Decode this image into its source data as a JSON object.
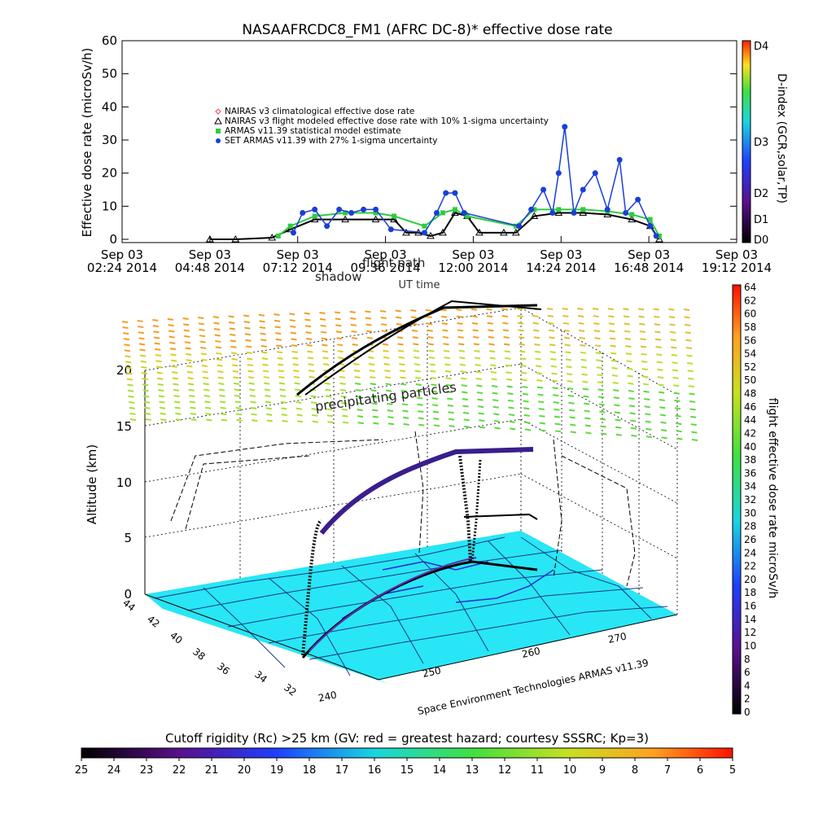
{
  "top_chart": {
    "title": "NASAAFRCDC8_FM1 (AFRC DC-8)* effective dose rate",
    "ylabel": "Effective dose rate (microSv/h)",
    "xlabel": "UT time",
    "yticks": [
      "0",
      "10",
      "20",
      "30",
      "40",
      "50",
      "60"
    ],
    "xticks": [
      {
        "l1": "Sep 03",
        "l2": "02:24 2014"
      },
      {
        "l1": "Sep 03",
        "l2": "04:48 2014"
      },
      {
        "l1": "Sep 03",
        "l2": "07:12 2014"
      },
      {
        "l1": "Sep 03",
        "l2": "09:36 2014"
      },
      {
        "l1": "Sep 03",
        "l2": "12:00 2014"
      },
      {
        "l1": "Sep 03",
        "l2": "14:24 2014"
      },
      {
        "l1": "Sep 03",
        "l2": "16:48 2014"
      },
      {
        "l1": "Sep 03",
        "l2": "19:12 2014"
      }
    ],
    "legend": [
      {
        "text": "NAIRAS v3 climatological effective dose rate",
        "color": "#e24a4a",
        "marker": "diamond"
      },
      {
        "text": "NAIRAS v3 flight modeled effective dose rate with 10% 1-sigma uncertainty",
        "color": "#000000",
        "marker": "triangle"
      },
      {
        "text": "ARMAS v11.39 statistical model estimate",
        "color": "#2ecc40",
        "marker": "star"
      },
      {
        "text": "SET ARMAS v11.39 with 27% 1-sigma uncertainty",
        "color": "#1a3fd6",
        "marker": "circle"
      }
    ],
    "dindex": {
      "title": "D-index (GCR,solar,TP)",
      "ticks": [
        "D0",
        "D1",
        "D2",
        "D3",
        "D4"
      ]
    }
  },
  "bottom_chart": {
    "ylabel": "Altitude (km)",
    "zticks": [
      "0",
      "5",
      "10",
      "15",
      "20"
    ],
    "lat_ticks": [
      "44",
      "42",
      "40",
      "38",
      "36",
      "34",
      "32"
    ],
    "lon_ticks": [
      "240",
      "250",
      "260",
      "270"
    ],
    "credit": "Space Environment Technologies ARMAS v11.39",
    "annotation_particles": "precipitating particles",
    "annotation_shadow": "shadow",
    "annotation_flight": "flight path",
    "colorbar_title": "flight effective dose rate microSv/h",
    "colorbar_ticks": [
      "0",
      "2",
      "4",
      "6",
      "8",
      "10",
      "12",
      "14",
      "16",
      "18",
      "20",
      "22",
      "24",
      "26",
      "28",
      "30",
      "32",
      "34",
      "36",
      "38",
      "40",
      "42",
      "44",
      "46",
      "48",
      "50",
      "52",
      "54",
      "56",
      "58",
      "60",
      "62",
      "64"
    ]
  },
  "cutoff": {
    "title": "Cutoff rigidity (Rc) >25 km (GV: red = greatest hazard; courtesy SSSRC; Kp=3)",
    "ticks": [
      "25",
      "24",
      "23",
      "22",
      "21",
      "20",
      "19",
      "18",
      "17",
      "16",
      "15",
      "14",
      "13",
      "12",
      "11",
      "10",
      "9",
      "8",
      "7",
      "6",
      "5"
    ]
  },
  "chart_data": {
    "type": "scatter",
    "title": "NASAAFRCDC8_FM1 (AFRC DC-8)* effective dose rate",
    "xlabel": "UT time",
    "ylabel": "Effective dose rate (microSv/h)",
    "ylim": [
      0,
      60
    ],
    "xlim": [
      "2014-09-03 02:24",
      "2014-09-03 19:12"
    ],
    "series": [
      {
        "name": "NAIRAS v3 flight modeled effective dose rate with 10% 1-sigma uncertainty",
        "x": [
          "04:48",
          "05:30",
          "06:30",
          "07:00",
          "07:40",
          "08:30",
          "09:20",
          "09:50",
          "10:10",
          "10:30",
          "10:50",
          "11:10",
          "11:30",
          "11:50",
          "12:10",
          "12:50",
          "13:10",
          "13:40",
          "14:20",
          "15:00",
          "15:40",
          "16:20",
          "16:50",
          "17:05"
        ],
        "y": [
          0,
          0,
          0.5,
          3,
          6,
          6,
          6,
          6,
          2,
          2,
          1,
          2,
          8,
          7,
          2,
          2,
          2,
          7,
          8,
          8,
          7.5,
          6,
          4,
          0
        ]
      },
      {
        "name": "ARMAS v11.39 statistical model estimate",
        "x": [
          "06:40",
          "07:00",
          "07:40",
          "08:30",
          "09:20",
          "09:50",
          "10:40",
          "11:10",
          "11:30",
          "11:50",
          "13:10",
          "13:40",
          "14:20",
          "15:00",
          "15:40",
          "16:20",
          "16:50",
          "17:05"
        ],
        "y": [
          1,
          4,
          7,
          8,
          8,
          7,
          4,
          8,
          9,
          7,
          4,
          9,
          9,
          9,
          8.5,
          7.5,
          6,
          1
        ]
      },
      {
        "name": "SET ARMAS v11.39 with 27% 1-sigma uncertainty",
        "x": [
          "07:05",
          "07:20",
          "07:40",
          "08:00",
          "08:20",
          "08:40",
          "09:00",
          "09:20",
          "09:45",
          "10:40",
          "11:00",
          "11:15",
          "11:30",
          "11:45",
          "13:15",
          "13:35",
          "13:55",
          "14:10",
          "14:20",
          "14:30",
          "14:45",
          "15:00",
          "15:20",
          "15:40",
          "16:00",
          "16:10",
          "16:30",
          "16:50",
          "17:00"
        ],
        "y": [
          2,
          8,
          9,
          4,
          9,
          8,
          9,
          9,
          3,
          2,
          8,
          14,
          14,
          8,
          4,
          9,
          15,
          8,
          20,
          34,
          8,
          15,
          20,
          9,
          24,
          8,
          12,
          4,
          1
        ]
      }
    ]
  }
}
